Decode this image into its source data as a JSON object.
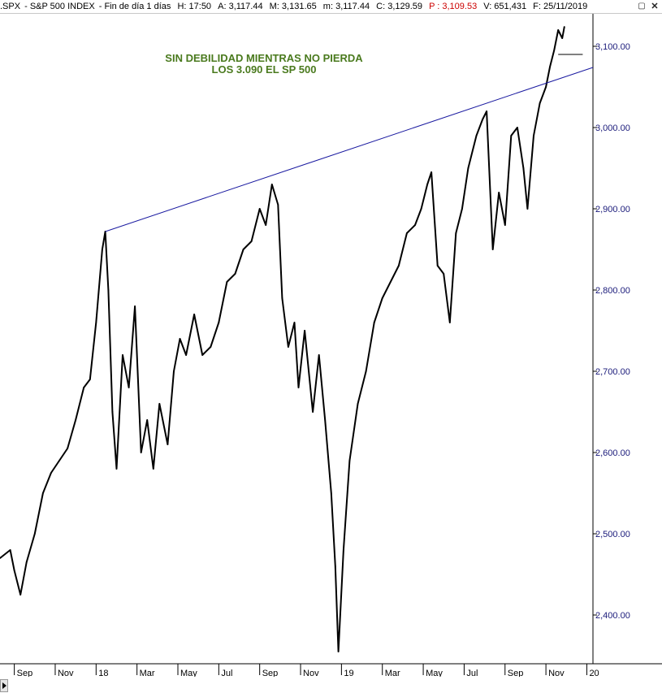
{
  "header": {
    "symbol": ".SPX",
    "name": "S&P 500 INDEX",
    "period": "Fin de día 1 días",
    "h": "H: 17:50",
    "a": "A: 3,117.44",
    "m": "M: 3,131.65",
    "lo": "m: 3,117.44",
    "c": "C: 3,129.59",
    "p": "P : 3,109.53",
    "v": "V: 651,431",
    "f": "F: 25/11/2019"
  },
  "window_controls": {
    "restore": "▢",
    "close": "✕"
  },
  "annotation": {
    "line1": "SIN DEBILIDAD MIENTRAS NO PIERDA",
    "line2": "LOS 3.090 EL SP 500",
    "color": "#4a7a1e"
  },
  "colors": {
    "price": "#000000",
    "trendline": "#1a1aa0",
    "axis_text": "#1a1a7a",
    "grid": "#d0d0d0"
  },
  "chart_data": {
    "type": "line",
    "title": "",
    "ylim": [
      2340,
      3140
    ],
    "y_ticks": [
      2400,
      2500,
      2600,
      2700,
      2800,
      2900,
      3000,
      3100
    ],
    "y_tick_labels": [
      "2,400.00",
      "2,500.00",
      "2,600.00",
      "2,700.00",
      "2,800.00",
      "2,900.00",
      "3,000.00",
      "3,100.00"
    ],
    "x_labels": [
      "Sep",
      "Nov",
      "18",
      "Mar",
      "May",
      "Jul",
      "Sep",
      "Nov",
      "19",
      "Mar",
      "May",
      "Jul",
      "Sep",
      "Nov",
      "20"
    ],
    "x_label_months": [
      0,
      2,
      4,
      6,
      8,
      10,
      12,
      14,
      16,
      18,
      20,
      22,
      24,
      26,
      28
    ],
    "x_range_months": [
      -0.7,
      28.3
    ],
    "series": [
      {
        "points": [
          [
            -0.7,
            2470
          ],
          [
            -0.2,
            2480
          ],
          [
            0.0,
            2455
          ],
          [
            0.3,
            2425
          ],
          [
            0.6,
            2465
          ],
          [
            1.0,
            2500
          ],
          [
            1.4,
            2550
          ],
          [
            1.8,
            2575
          ],
          [
            2.2,
            2590
          ],
          [
            2.6,
            2605
          ],
          [
            3.0,
            2640
          ],
          [
            3.4,
            2680
          ],
          [
            3.7,
            2690
          ],
          [
            4.0,
            2760
          ],
          [
            4.3,
            2850
          ],
          [
            4.45,
            2872
          ],
          [
            4.6,
            2800
          ],
          [
            4.8,
            2650
          ],
          [
            5.0,
            2580
          ],
          [
            5.3,
            2720
          ],
          [
            5.6,
            2680
          ],
          [
            5.9,
            2780
          ],
          [
            6.2,
            2600
          ],
          [
            6.5,
            2640
          ],
          [
            6.8,
            2580
          ],
          [
            7.1,
            2660
          ],
          [
            7.5,
            2610
          ],
          [
            7.8,
            2700
          ],
          [
            8.1,
            2740
          ],
          [
            8.4,
            2720
          ],
          [
            8.8,
            2770
          ],
          [
            9.2,
            2720
          ],
          [
            9.6,
            2730
          ],
          [
            10.0,
            2760
          ],
          [
            10.4,
            2810
          ],
          [
            10.8,
            2820
          ],
          [
            11.2,
            2850
          ],
          [
            11.6,
            2860
          ],
          [
            12.0,
            2900
          ],
          [
            12.3,
            2880
          ],
          [
            12.6,
            2930
          ],
          [
            12.9,
            2905
          ],
          [
            13.1,
            2790
          ],
          [
            13.4,
            2730
          ],
          [
            13.7,
            2760
          ],
          [
            13.9,
            2680
          ],
          [
            14.2,
            2750
          ],
          [
            14.6,
            2650
          ],
          [
            14.9,
            2720
          ],
          [
            15.2,
            2640
          ],
          [
            15.5,
            2550
          ],
          [
            15.7,
            2460
          ],
          [
            15.85,
            2355
          ],
          [
            16.1,
            2480
          ],
          [
            16.4,
            2590
          ],
          [
            16.8,
            2660
          ],
          [
            17.2,
            2700
          ],
          [
            17.6,
            2760
          ],
          [
            18.0,
            2790
          ],
          [
            18.4,
            2810
          ],
          [
            18.8,
            2830
          ],
          [
            19.2,
            2870
          ],
          [
            19.6,
            2880
          ],
          [
            19.9,
            2900
          ],
          [
            20.2,
            2930
          ],
          [
            20.4,
            2945
          ],
          [
            20.7,
            2830
          ],
          [
            21.0,
            2820
          ],
          [
            21.3,
            2760
          ],
          [
            21.6,
            2870
          ],
          [
            21.9,
            2900
          ],
          [
            22.2,
            2950
          ],
          [
            22.6,
            2990
          ],
          [
            22.9,
            3010
          ],
          [
            23.1,
            3020
          ],
          [
            23.4,
            2850
          ],
          [
            23.7,
            2920
          ],
          [
            24.0,
            2880
          ],
          [
            24.3,
            2990
          ],
          [
            24.6,
            3000
          ],
          [
            24.9,
            2950
          ],
          [
            25.1,
            2900
          ],
          [
            25.4,
            2990
          ],
          [
            25.7,
            3030
          ],
          [
            26.0,
            3050
          ],
          [
            26.2,
            3075
          ],
          [
            26.4,
            3095
          ],
          [
            26.6,
            3120
          ],
          [
            26.8,
            3110
          ],
          [
            26.9,
            3124
          ]
        ]
      }
    ],
    "trendline": {
      "start": [
        4.45,
        2872
      ],
      "end": [
        28.3,
        3074
      ]
    },
    "support": {
      "y": 3090,
      "x": [
        26.6,
        27.8
      ]
    }
  }
}
